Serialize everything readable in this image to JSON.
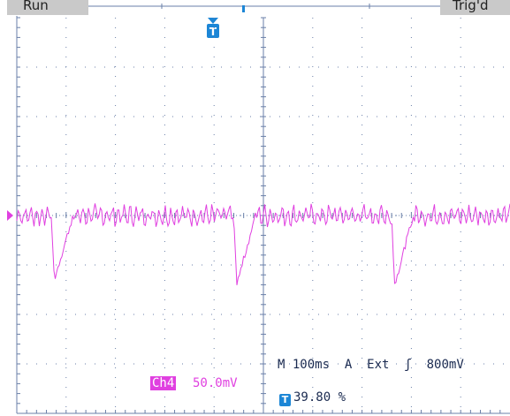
{
  "header": {
    "left_tab": "Run",
    "right_tab": "Trig'd",
    "trigger_marker": "T"
  },
  "readout": {
    "channel": "Ch4",
    "channel_scale": "50.0mV",
    "timebase": "M 100ms",
    "trigger_mode": "A",
    "trigger_source": "Ext",
    "trigger_slope_glyph": "ʃ",
    "trigger_level": "800mV",
    "trigger_position_icon": "T",
    "trigger_position": "39.80 %"
  },
  "colors": {
    "trace": "#e040e0",
    "grid": "#6a7fa8",
    "trigger_marker": "#1c86d6",
    "text": "#1a2a50"
  },
  "chart_data": {
    "type": "line",
    "channel": "Ch4",
    "grid": true,
    "x_divisions": 10,
    "y_divisions": 8,
    "baseline": 0,
    "dips": [
      {
        "x_div": 0.7,
        "depth_div": -1.3
      },
      {
        "x_div": 4.4,
        "depth_div": -1.4
      },
      {
        "x_div": 7.6,
        "depth_div": -1.4
      }
    ]
  }
}
